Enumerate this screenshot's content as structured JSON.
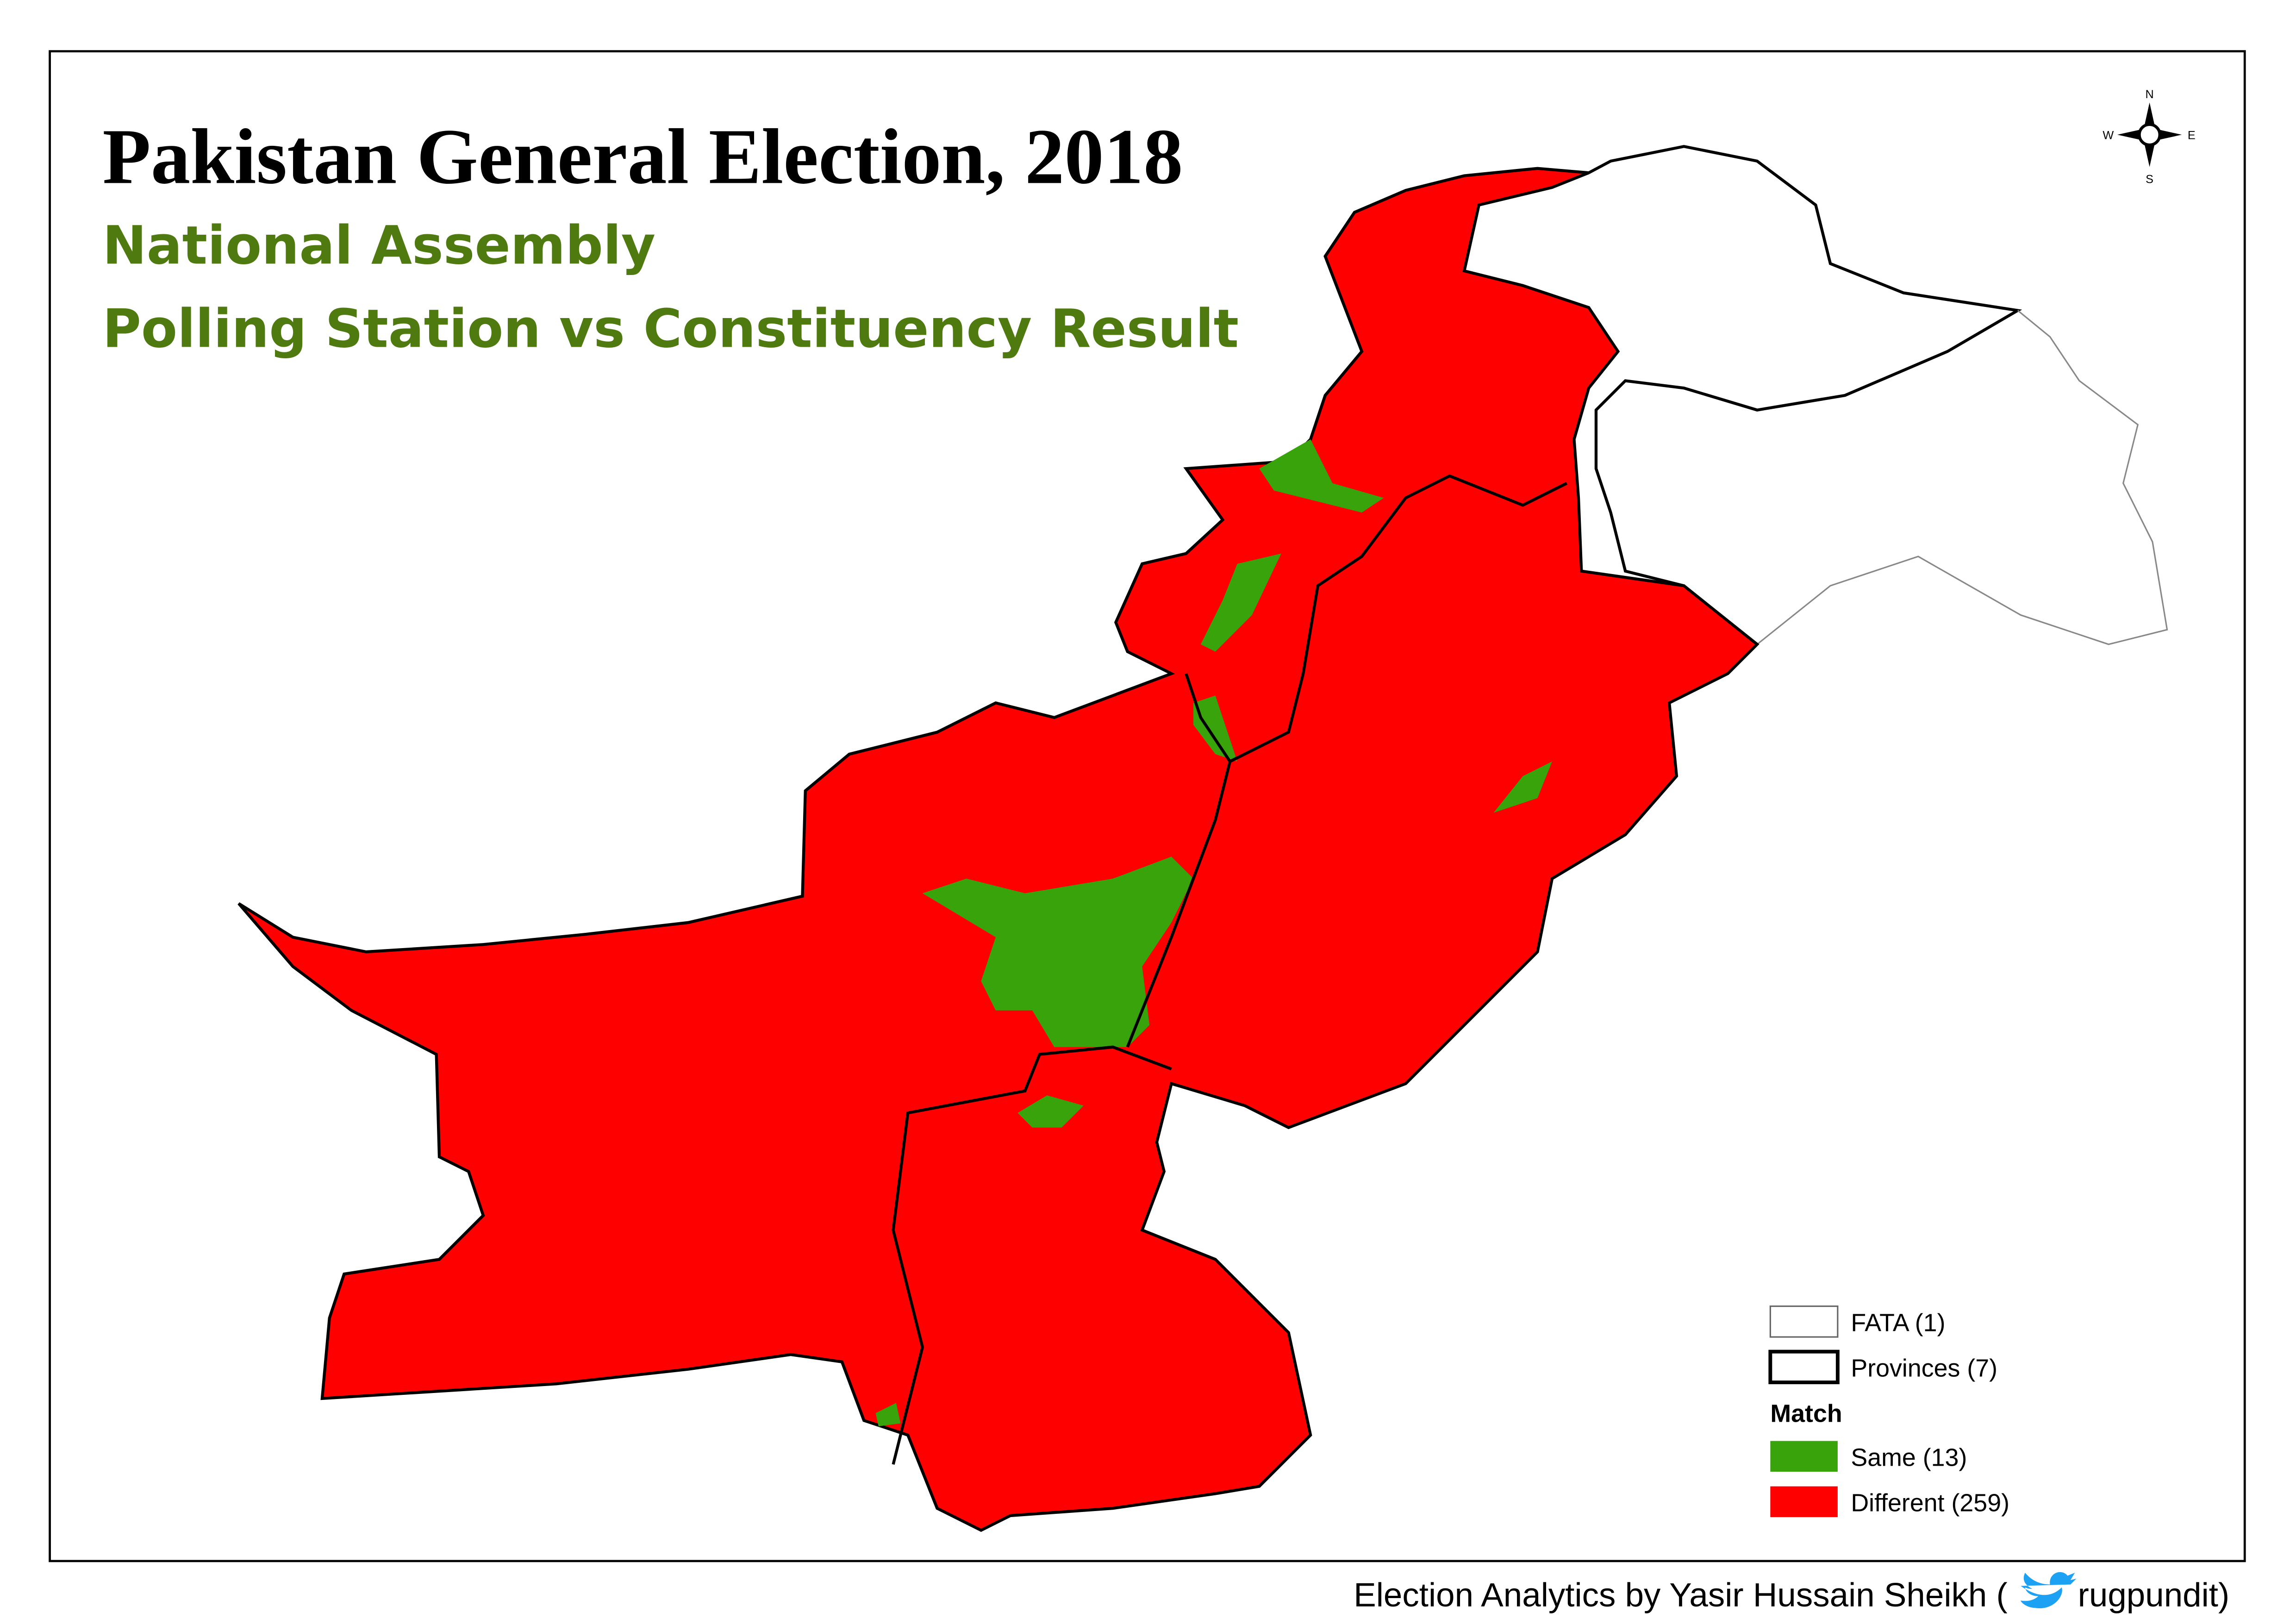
{
  "title": "Pakistan General Election, 2018",
  "subtitles": [
    "National Assembly",
    "Polling Station vs Constituency Result"
  ],
  "compass": {
    "n": "N",
    "e": "E",
    "s": "S",
    "w": "W"
  },
  "legend": {
    "boundaries": [
      "FATA (1)",
      "Provinces (7)"
    ],
    "heading": "Match",
    "items": [
      "Same (13)",
      "Different (259)"
    ]
  },
  "credit": {
    "text": "Election Analytics by Yasir Hussain Sheikh (",
    "handle": "rugpundit)"
  }
}
